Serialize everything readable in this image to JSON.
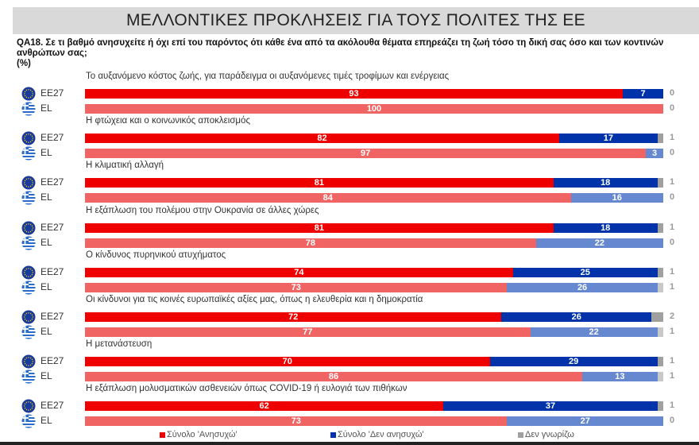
{
  "header": {
    "title": "ΜΕΛΛΟΝΤΙΚΕΣ ΠΡΟΚΛΗΣΕΙΣ ΓΙΑ ΤΟΥΣ ΠΟΛΙΤΕΣ ΤΗΣ ΕΕ"
  },
  "question": {
    "text": "QA18. Σε τι βαθμό ανησυχείτε ή όχι επί του παρόντος ότι κάθε ένα από τα ακόλουθα θέματα επηρεάζει τη ζωή τόσο τη δική σας όσο και των κοντινών ανθρώπων σας;",
    "unit": "(%)"
  },
  "colors": {
    "eu_worried": "#EE0000",
    "eu_not_worried": "#0033AA",
    "eu_dont_know": "#A0A0A0",
    "el_worried": "#F06464",
    "el_not_worried": "#6688D0",
    "el_dont_know": "#C8C8C8"
  },
  "legend": {
    "worried": "Σύνολο 'Ανησυχώ'",
    "not_worried": "Σύνολο 'Δεν ανησυχώ'",
    "dont_know": "Δεν γνωρίζω"
  },
  "chart_data": {
    "type": "bar",
    "orientation": "horizontal-stacked",
    "title": "ΜΕΛΛΟΝΤΙΚΕΣ ΠΡΟΚΛΗΣΕΙΣ ΓΙΑ ΤΟΥΣ ΠΟΛΙΤΕΣ ΤΗΣ ΕΕ",
    "subtitle": "QA18. Σε τι βαθμό ανησυχείτε ή όχι επί του παρόντος ότι κάθε ένα από τα ακόλουθα θέματα επηρεάζει τη ζωή τόσο τη δική σας όσο και των κοντινών ανθρώπων σας; (%)",
    "series_names": [
      "Σύνολο 'Ανησυχώ'",
      "Σύνολο 'Δεν ανησυχώ'",
      "Δεν γνωρίζω"
    ],
    "legend_position": "bottom",
    "grid": false,
    "groups": [
      {
        "label": "Το αυξανόμενο κόστος ζωής, για παράδειγμα οι αυξανόμενες τιμές τροφίμων και ενέργειας",
        "rows": [
          {
            "name": "EE27",
            "values": [
              93,
              7,
              0
            ]
          },
          {
            "name": "EL",
            "values": [
              100,
              0,
              0
            ]
          }
        ]
      },
      {
        "label": "Η φτώχεια και ο κοινωνικός αποκλεισμός",
        "rows": [
          {
            "name": "EE27",
            "values": [
              82,
              17,
              1
            ]
          },
          {
            "name": "EL",
            "values": [
              97,
              3,
              0
            ]
          }
        ]
      },
      {
        "label": "Η κλιματική αλλαγή",
        "rows": [
          {
            "name": "EE27",
            "values": [
              81,
              18,
              1
            ]
          },
          {
            "name": "EL",
            "values": [
              84,
              16,
              0
            ]
          }
        ]
      },
      {
        "label": "Η εξάπλωση του πολέμου στην Ουκρανία σε άλλες χώρες",
        "rows": [
          {
            "name": "EE27",
            "values": [
              81,
              18,
              1
            ]
          },
          {
            "name": "EL",
            "values": [
              78,
              22,
              0
            ]
          }
        ]
      },
      {
        "label": "Ο κίνδυνος πυρηνικού ατυχήματος",
        "rows": [
          {
            "name": "EE27",
            "values": [
              74,
              25,
              1
            ]
          },
          {
            "name": "EL",
            "values": [
              73,
              26,
              1
            ]
          }
        ]
      },
      {
        "label": "Οι κίνδυνοι για τις κοινές ευρωπαϊκές αξίες μας, όπως η ελευθερία και η δημοκρατία",
        "rows": [
          {
            "name": "EE27",
            "values": [
              72,
              26,
              2
            ]
          },
          {
            "name": "EL",
            "values": [
              77,
              22,
              1
            ]
          }
        ]
      },
      {
        "label": "Η μετανάστευση",
        "rows": [
          {
            "name": "EE27",
            "values": [
              70,
              29,
              1
            ]
          },
          {
            "name": "EL",
            "values": [
              86,
              13,
              1
            ]
          }
        ]
      },
      {
        "label": "Η εξάπλωση μολυσματικών ασθενειών όπως COVID-19 ή ευλογιά των πιθήκων",
        "rows": [
          {
            "name": "EE27",
            "values": [
              62,
              37,
              1
            ]
          },
          {
            "name": "EL",
            "values": [
              73,
              27,
              0
            ]
          }
        ]
      }
    ]
  }
}
